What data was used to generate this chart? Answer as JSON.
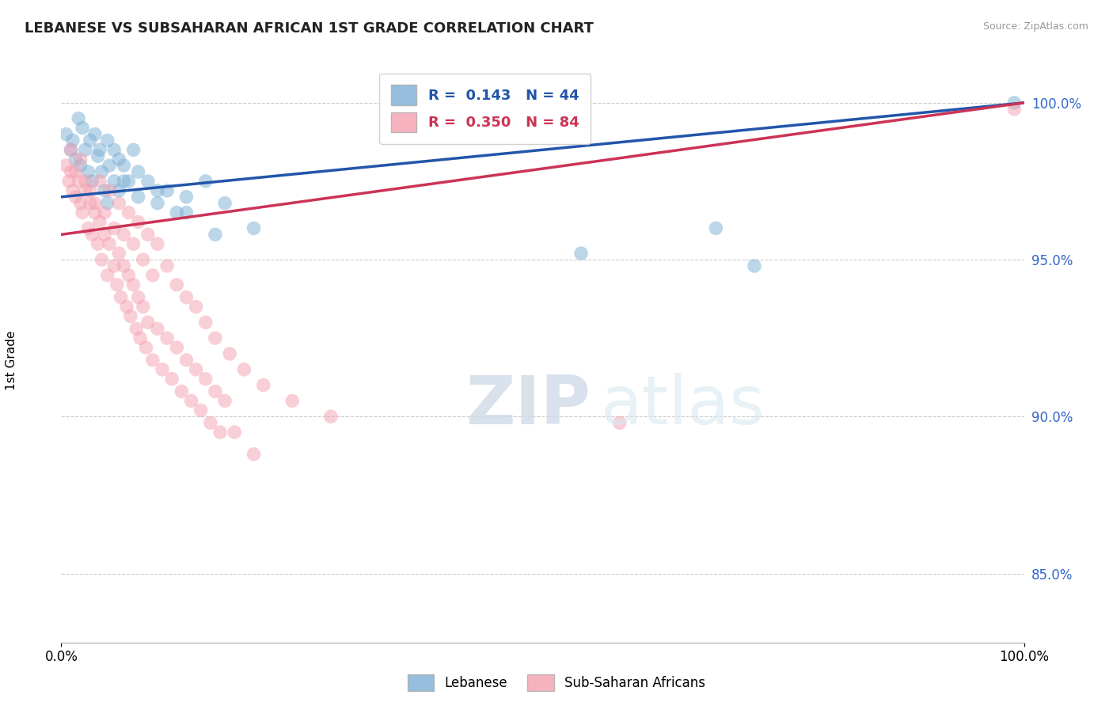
{
  "title": "LEBANESE VS SUBSAHARAN AFRICAN 1ST GRADE CORRELATION CHART",
  "source": "Source: ZipAtlas.com",
  "ylabel": "1st Grade",
  "xlim": [
    0.0,
    1.0
  ],
  "ylim": [
    0.828,
    1.008
  ],
  "yticks": [
    0.85,
    0.9,
    0.95,
    1.0
  ],
  "ytick_labels": [
    "85.0%",
    "90.0%",
    "95.0%",
    "100.0%"
  ],
  "xticks": [
    0.0,
    1.0
  ],
  "xtick_labels": [
    "0.0%",
    "100.0%"
  ],
  "r_lebanese": 0.143,
  "n_lebanese": 44,
  "r_subsaharan": 0.35,
  "n_subsaharan": 84,
  "lebanese_color": "#7bafd4",
  "subsaharan_color": "#f4a0b0",
  "lebanese_line_color": "#2255aa",
  "subsaharan_line_color": "#cc3355",
  "background_color": "#ffffff",
  "grid_color": "#cccccc",
  "watermark_zip": "ZIP",
  "watermark_atlas": "atlas",
  "legend_label_1": "Lebanese",
  "legend_label_2": "Sub-Saharan Africans",
  "lebanese_x": [
    0.005,
    0.01,
    0.012,
    0.015,
    0.018,
    0.02,
    0.022,
    0.025,
    0.028,
    0.03,
    0.032,
    0.035,
    0.038,
    0.04,
    0.042,
    0.045,
    0.048,
    0.05,
    0.055,
    0.06,
    0.065,
    0.07,
    0.075,
    0.08,
    0.09,
    0.1,
    0.11,
    0.12,
    0.13,
    0.15,
    0.17,
    0.2,
    0.06,
    0.08,
    0.1,
    0.13,
    0.16,
    0.048,
    0.055,
    0.065,
    0.54,
    0.68,
    0.72,
    0.99
  ],
  "lebanese_y": [
    0.99,
    0.985,
    0.988,
    0.982,
    0.995,
    0.98,
    0.992,
    0.985,
    0.978,
    0.988,
    0.975,
    0.99,
    0.983,
    0.985,
    0.978,
    0.972,
    0.968,
    0.98,
    0.975,
    0.972,
    0.98,
    0.975,
    0.985,
    0.97,
    0.975,
    0.968,
    0.972,
    0.965,
    0.97,
    0.975,
    0.968,
    0.96,
    0.982,
    0.978,
    0.972,
    0.965,
    0.958,
    0.988,
    0.985,
    0.975,
    0.952,
    0.96,
    0.948,
    1.0
  ],
  "subsaharan_x": [
    0.005,
    0.008,
    0.01,
    0.012,
    0.015,
    0.018,
    0.02,
    0.022,
    0.025,
    0.028,
    0.03,
    0.032,
    0.035,
    0.038,
    0.04,
    0.042,
    0.045,
    0.048,
    0.05,
    0.055,
    0.058,
    0.06,
    0.062,
    0.065,
    0.068,
    0.07,
    0.072,
    0.075,
    0.078,
    0.08,
    0.082,
    0.085,
    0.088,
    0.09,
    0.095,
    0.1,
    0.105,
    0.11,
    0.115,
    0.12,
    0.125,
    0.13,
    0.135,
    0.14,
    0.145,
    0.15,
    0.155,
    0.16,
    0.165,
    0.17,
    0.01,
    0.015,
    0.02,
    0.025,
    0.03,
    0.035,
    0.04,
    0.045,
    0.05,
    0.055,
    0.06,
    0.065,
    0.07,
    0.075,
    0.08,
    0.085,
    0.09,
    0.095,
    0.1,
    0.11,
    0.12,
    0.13,
    0.14,
    0.15,
    0.16,
    0.175,
    0.19,
    0.21,
    0.24,
    0.28,
    0.18,
    0.2,
    0.58,
    0.99
  ],
  "subsaharan_y": [
    0.98,
    0.975,
    0.978,
    0.972,
    0.97,
    0.975,
    0.968,
    0.965,
    0.972,
    0.96,
    0.968,
    0.958,
    0.965,
    0.955,
    0.962,
    0.95,
    0.958,
    0.945,
    0.955,
    0.948,
    0.942,
    0.952,
    0.938,
    0.948,
    0.935,
    0.945,
    0.932,
    0.942,
    0.928,
    0.938,
    0.925,
    0.935,
    0.922,
    0.93,
    0.918,
    0.928,
    0.915,
    0.925,
    0.912,
    0.922,
    0.908,
    0.918,
    0.905,
    0.915,
    0.902,
    0.912,
    0.898,
    0.908,
    0.895,
    0.905,
    0.985,
    0.978,
    0.982,
    0.975,
    0.972,
    0.968,
    0.975,
    0.965,
    0.972,
    0.96,
    0.968,
    0.958,
    0.965,
    0.955,
    0.962,
    0.95,
    0.958,
    0.945,
    0.955,
    0.948,
    0.942,
    0.938,
    0.935,
    0.93,
    0.925,
    0.92,
    0.915,
    0.91,
    0.905,
    0.9,
    0.895,
    0.888,
    0.898,
    0.998
  ]
}
